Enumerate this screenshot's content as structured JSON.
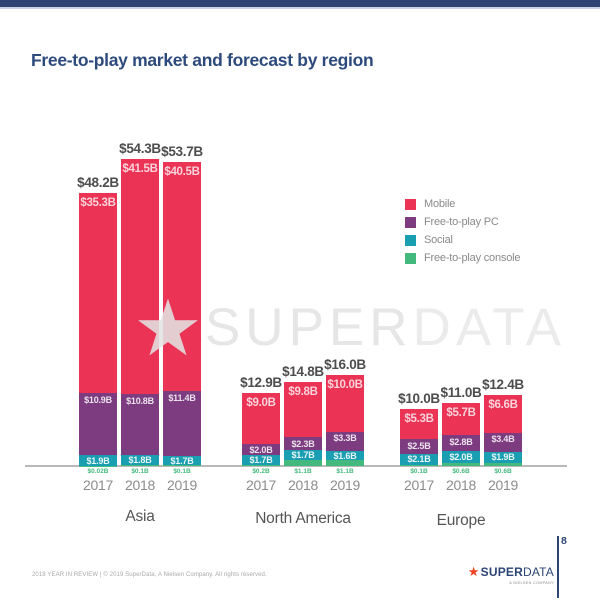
{
  "page": {
    "title": "Free-to-play market and forecast by region",
    "footer_left": "2018 YEAR IN REVIEW  |  © 2019 SuperData, A Nielsen Company. All rights reserved.",
    "page_number": "8",
    "watermark": {
      "star": "★",
      "text_super": "SUPER",
      "text_data": "DATA"
    },
    "logo": {
      "star": "★",
      "text_super": "SUPER",
      "text_data": "DATA",
      "subtitle": "A NIELSEN COMPANY"
    }
  },
  "colors": {
    "mobile": "#ea3355",
    "pc": "#7d3c80",
    "social": "#199fb1",
    "console": "#44b97e",
    "navy": "#2d4576",
    "topbar": "#2e4372",
    "topbar_accent": "#c7d4e8",
    "title": "#2d4a7c",
    "logo_star": "#ee4323"
  },
  "legend": [
    {
      "label": "Mobile",
      "color_key": "mobile"
    },
    {
      "label": "Free-to-play PC",
      "color_key": "pc"
    },
    {
      "label": "Social",
      "color_key": "social"
    },
    {
      "label": "Free-to-play console",
      "color_key": "console"
    }
  ],
  "chart_data": {
    "type": "bar",
    "stacked": true,
    "unit": "USD billions",
    "title": "Free-to-play market and forecast by region",
    "series_names": [
      "Mobile",
      "Free-to-play PC",
      "Social",
      "Free-to-play console"
    ],
    "legend_position": "right",
    "grid": false,
    "ylim": [
      0,
      57
    ],
    "groups": [
      {
        "region": "Asia",
        "bars": [
          {
            "year": "2017",
            "total": 48.2,
            "total_label": "$48.2B",
            "mobile": 35.3,
            "pc": 10.9,
            "social": 1.9,
            "console": 0.02,
            "mobile_label": "$35.3B",
            "pc_label": "$10.9B",
            "social_label": "$1.9B",
            "console_label": "$0.02B"
          },
          {
            "year": "2018",
            "total": 54.3,
            "total_label": "$54.3B",
            "mobile": 41.5,
            "pc": 10.8,
            "social": 1.8,
            "console": 0.1,
            "mobile_label": "$41.5B",
            "pc_label": "$10.8B",
            "social_label": "$1.8B",
            "console_label": "$0.1B"
          },
          {
            "year": "2019",
            "total": 53.7,
            "total_label": "$53.7B",
            "mobile": 40.5,
            "pc": 11.4,
            "social": 1.7,
            "console": 0.1,
            "mobile_label": "$40.5B",
            "pc_label": "$11.4B",
            "social_label": "$1.7B",
            "console_label": "$0.1B"
          }
        ]
      },
      {
        "region": "North America",
        "bars": [
          {
            "year": "2017",
            "total": 12.9,
            "total_label": "$12.9B",
            "mobile": 9.0,
            "pc": 2.0,
            "social": 1.7,
            "console": 0.2,
            "mobile_label": "$9.0B",
            "pc_label": "$2.0B",
            "social_label": "$1.7B",
            "console_label": "$0.2B"
          },
          {
            "year": "2018",
            "total": 14.8,
            "total_label": "$14.8B",
            "mobile": 9.8,
            "pc": 2.3,
            "social": 1.7,
            "console": 1.1,
            "mobile_label": "$9.8B",
            "pc_label": "$2.3B",
            "social_label": "$1.7B",
            "console_label": "$1.1B"
          },
          {
            "year": "2019",
            "total": 16.0,
            "total_label": "$16.0B",
            "mobile": 10.0,
            "pc": 3.3,
            "social": 1.6,
            "console": 1.1,
            "mobile_label": "$10.0B",
            "pc_label": "$3.3B",
            "social_label": "$1.6B",
            "console_label": "$1.1B"
          }
        ]
      },
      {
        "region": "Europe",
        "bars": [
          {
            "year": "2017",
            "total": 10.0,
            "total_label": "$10.0B",
            "mobile": 5.3,
            "pc": 2.5,
            "social": 2.1,
            "console": 0.1,
            "mobile_label": "$5.3B",
            "pc_label": "$2.5B",
            "social_label": "$2.1B",
            "console_label": "$0.1B"
          },
          {
            "year": "2018",
            "total": 11.0,
            "total_label": "$11.0B",
            "mobile": 5.7,
            "pc": 2.8,
            "social": 2.0,
            "console": 0.6,
            "mobile_label": "$5.7B",
            "pc_label": "$2.8B",
            "social_label": "$2.0B",
            "console_label": "$0.6B"
          },
          {
            "year": "2019",
            "total": 12.4,
            "total_label": "$12.4B",
            "mobile": 6.6,
            "pc": 3.4,
            "social": 1.9,
            "console": 0.6,
            "mobile_label": "$6.6B",
            "pc_label": "$3.4B",
            "social_label": "$1.9B",
            "console_label": "$0.6B"
          }
        ]
      }
    ]
  }
}
